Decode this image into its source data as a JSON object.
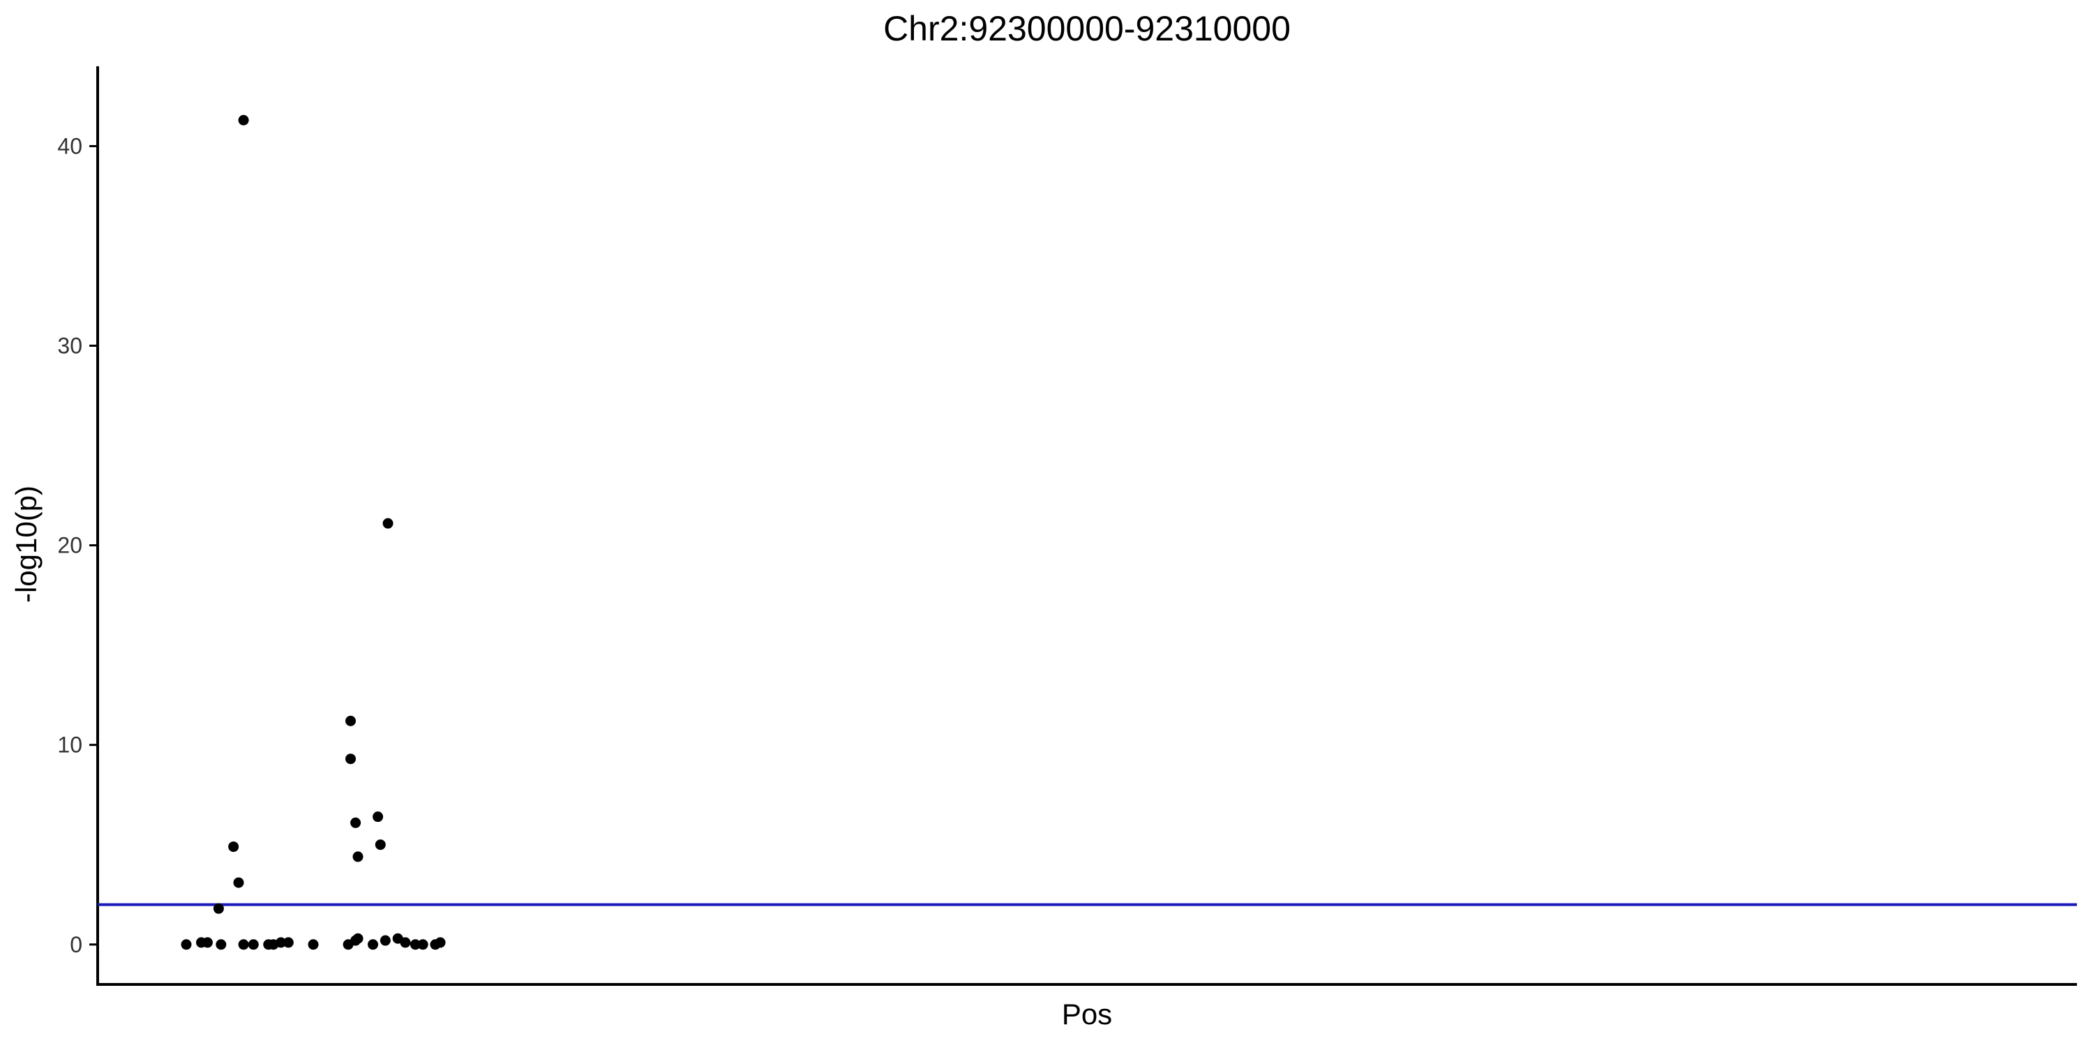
{
  "chart_data": {
    "type": "scatter",
    "title": "Chr2:92300000-92310000",
    "xlabel": "Pos",
    "ylabel": "-log10(p)",
    "xlim": [
      92300000,
      92310000
    ],
    "ylim": [
      -2,
      44
    ],
    "yticks": [
      0,
      10,
      20,
      30,
      40
    ],
    "x_tick_labels_shown": false,
    "grid": false,
    "legend": "none",
    "point_color": "#000000",
    "threshold": {
      "y": 2,
      "color": "#1a1ab8"
    },
    "series": [
      {
        "points": [
          [
            92300000,
            0.0
          ],
          [
            92300082,
            0.1
          ],
          [
            92300116,
            0.1
          ],
          [
            92300177,
            1.8
          ],
          [
            92300190,
            0.0
          ],
          [
            92300258,
            4.9
          ],
          [
            92300286,
            3.1
          ],
          [
            92300313,
            41.3
          ],
          [
            92300313,
            0.0
          ],
          [
            92300367,
            0.0
          ],
          [
            92300449,
            0.0
          ],
          [
            92300476,
            0.0
          ],
          [
            92300517,
            0.1
          ],
          [
            92300558,
            0.1
          ],
          [
            92300694,
            0.0
          ],
          [
            92300898,
            11.2
          ],
          [
            92300898,
            9.3
          ],
          [
            92300885,
            0.0
          ],
          [
            92300925,
            0.2
          ],
          [
            92300925,
            6.1
          ],
          [
            92300938,
            4.4
          ],
          [
            92300938,
            0.3
          ],
          [
            92301020,
            0.0
          ],
          [
            92301047,
            6.4
          ],
          [
            92301061,
            5.0
          ],
          [
            92301102,
            21.1
          ],
          [
            92301088,
            0.2
          ],
          [
            92301156,
            0.3
          ],
          [
            92301197,
            0.1
          ],
          [
            92301252,
            0.0
          ],
          [
            92301293,
            0.0
          ],
          [
            92301361,
            0.0
          ],
          [
            92301388,
            0.1
          ]
        ]
      }
    ]
  }
}
